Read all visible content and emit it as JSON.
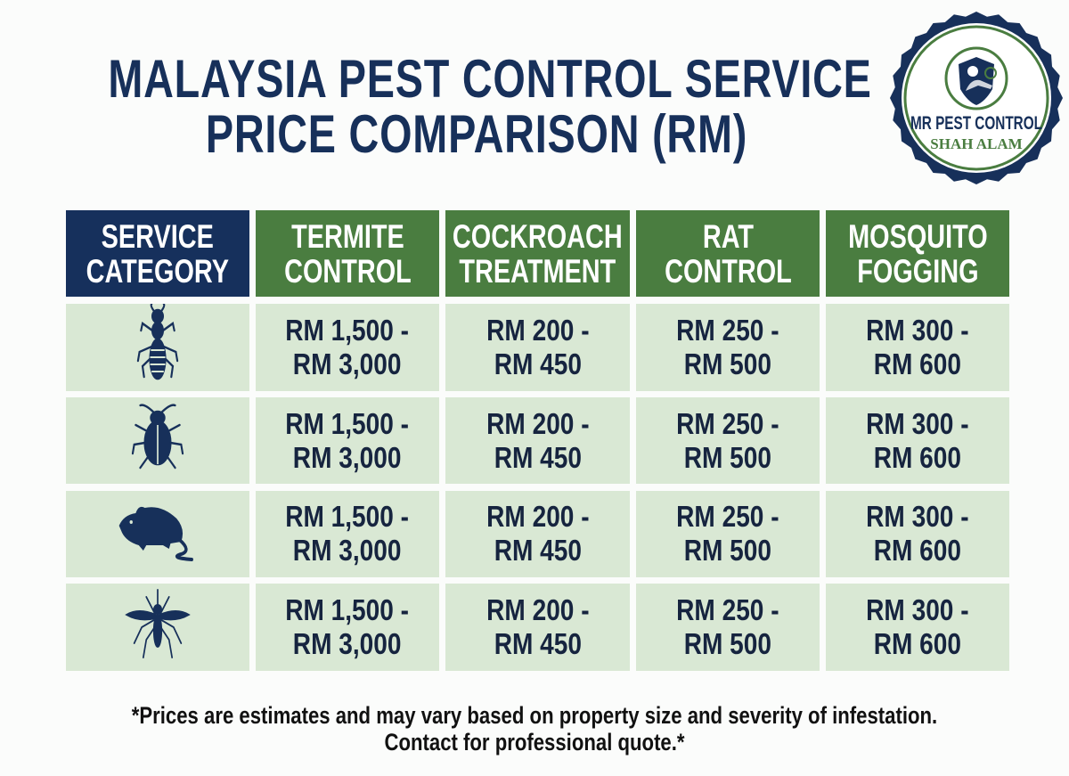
{
  "title": {
    "line1": "MALAYSIA PEST CONTROL SERVICE",
    "line2": "PRICE COMPARISON (RM)"
  },
  "logo": {
    "name": "MR PEST CONTROL",
    "location": "SHAH ALAM"
  },
  "colors": {
    "navy": "#16305c",
    "green": "#4a7d40",
    "cell": "#d9e8d4"
  },
  "table": {
    "headers": [
      "SERVICE\nCATEGORY",
      "TERMITE\nCONTROL",
      "COCKROACH\nTREATMENT",
      "RAT\nCONTROL",
      "MOSQUITO\nFOGGING"
    ],
    "rows": [
      {
        "icon": "termite-icon",
        "prices": [
          "RM 1,500 -\nRM 3,000",
          "RM 200 -\nRM 450",
          "RM 250 -\nRM 500",
          "RM 300 -\nRM 600"
        ]
      },
      {
        "icon": "cockroach-icon",
        "prices": [
          "RM 1,500 -\nRM 3,000",
          "RM 200 -\nRM 450",
          "RM 250 -\nRM 500",
          "RM 300 -\nRM 600"
        ]
      },
      {
        "icon": "rat-icon",
        "prices": [
          "RM 1,500 -\nRM 3,000",
          "RM 200 -\nRM 450",
          "RM 250 -\nRM 500",
          "RM 300 -\nRM 600"
        ]
      },
      {
        "icon": "mosquito-icon",
        "prices": [
          "RM 1,500 -\nRM 3,000",
          "RM 200 -\nRM 450",
          "RM 250 -\nRM 500",
          "RM 300 -\nRM 600"
        ]
      }
    ]
  },
  "footer": {
    "line1": "*Prices are estimates and may vary based on property size and severity of infestation.",
    "line2": "Contact for professional quote.*"
  }
}
